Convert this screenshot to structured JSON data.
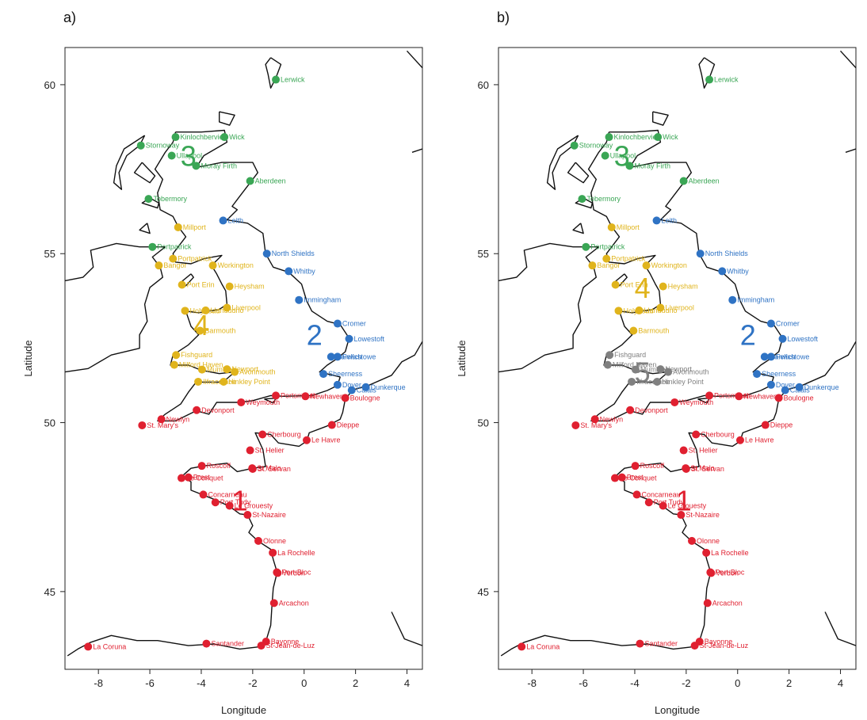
{
  "axes": {
    "xlabel": "Longitude",
    "ylabel": "Latitude",
    "xlim": [
      -9.3,
      4.6
    ],
    "ylim": [
      42.7,
      61.1
    ],
    "xticks": [
      "-8",
      "-6",
      "-4",
      "-2",
      "0",
      "2",
      "4"
    ],
    "xtick_values": [
      -8,
      -6,
      -4,
      -2,
      0,
      2,
      4
    ],
    "yticks": [
      "45",
      "50",
      "55",
      "60"
    ],
    "ytick_values": [
      45,
      50,
      55,
      60
    ]
  },
  "colors": {
    "1": "#e02030",
    "2": "#2f73c4",
    "3": "#3aa655",
    "4": "#e0b41c",
    "5": "#808080"
  },
  "panels": [
    {
      "label": "a)",
      "clusters": [
        {
          "id": "1",
          "text": "1",
          "lon": -2.5,
          "lat": 47.7
        },
        {
          "id": "2",
          "text": "2",
          "lon": 0.4,
          "lat": 52.6
        },
        {
          "id": "3",
          "text": "3",
          "lon": -4.5,
          "lat": 57.9
        },
        {
          "id": "4",
          "text": "4",
          "lon": -4.0,
          "lat": 52.9
        }
      ]
    },
    {
      "label": "b)",
      "clusters": [
        {
          "id": "1",
          "text": "1",
          "lon": -2.1,
          "lat": 47.7
        },
        {
          "id": "2",
          "text": "2",
          "lon": 0.4,
          "lat": 52.6
        },
        {
          "id": "3",
          "text": "3",
          "lon": -4.5,
          "lat": 57.9
        },
        {
          "id": "4",
          "text": "4",
          "lon": -3.7,
          "lat": 54.0
        },
        {
          "id": "5",
          "text": "5",
          "lon": -3.7,
          "lat": 51.5
        }
      ]
    }
  ],
  "ports": [
    {
      "name": "Lerwick",
      "lon": -1.1,
      "lat": 60.15,
      "ca": "3",
      "cb": "3"
    },
    {
      "name": "Kinlochbervie",
      "lon": -5.0,
      "lat": 58.45,
      "ca": "3",
      "cb": "3"
    },
    {
      "name": "Stornoway",
      "lon": -6.35,
      "lat": 58.2,
      "ca": "3",
      "cb": "3"
    },
    {
      "name": "Wick",
      "lon": -3.1,
      "lat": 58.45,
      "ca": "3",
      "cb": "3"
    },
    {
      "name": "Ullapool",
      "lon": -5.15,
      "lat": 57.9,
      "ca": "3",
      "cb": "3"
    },
    {
      "name": "Moray Firth",
      "lon": -4.2,
      "lat": 57.6,
      "ca": "3",
      "cb": "3"
    },
    {
      "name": "Aberdeen",
      "lon": -2.1,
      "lat": 57.15,
      "ca": "3",
      "cb": "3"
    },
    {
      "name": "Tobermory",
      "lon": -6.05,
      "lat": 56.62,
      "ca": "3",
      "cb": "3"
    },
    {
      "name": "Portpatrick",
      "lon": -5.9,
      "lat": 55.2,
      "ca": "3",
      "cb": "3"
    },
    {
      "name": "Leith",
      "lon": -3.15,
      "lat": 55.98,
      "ca": "2",
      "cb": "2"
    },
    {
      "name": "North Shields",
      "lon": -1.45,
      "lat": 55.0,
      "ca": "2",
      "cb": "2"
    },
    {
      "name": "Whitby",
      "lon": -0.6,
      "lat": 54.48,
      "ca": "2",
      "cb": "2"
    },
    {
      "name": "Immingham",
      "lon": -0.2,
      "lat": 53.63,
      "ca": "2",
      "cb": "2"
    },
    {
      "name": "Cromer",
      "lon": 1.3,
      "lat": 52.93,
      "ca": "2",
      "cb": "2"
    },
    {
      "name": "Lowestoft",
      "lon": 1.75,
      "lat": 52.48,
      "ca": "2",
      "cb": "2"
    },
    {
      "name": "Felixstowe",
      "lon": 1.3,
      "lat": 51.95,
      "ca": "2",
      "cb": "2"
    },
    {
      "name": "Harwich",
      "lon": 1.05,
      "lat": 51.95,
      "ca": "2",
      "cb": "2"
    },
    {
      "name": "Sheerness",
      "lon": 0.75,
      "lat": 51.44,
      "ca": "2",
      "cb": "2"
    },
    {
      "name": "Dover",
      "lon": 1.3,
      "lat": 51.12,
      "ca": "2",
      "cb": "2"
    },
    {
      "name": "Calais",
      "lon": 1.85,
      "lat": 50.96,
      "ca": "2",
      "cb": "2"
    },
    {
      "name": "Dunkerque",
      "lon": 2.4,
      "lat": 51.05,
      "ca": "2",
      "cb": "2"
    },
    {
      "name": "Millport",
      "lon": -4.9,
      "lat": 55.78,
      "ca": "4",
      "cb": "4"
    },
    {
      "name": "Portpatrick",
      "lon": -5.1,
      "lat": 54.85,
      "ca": "4",
      "cb": "4"
    },
    {
      "name": "Bangor",
      "lon": -5.65,
      "lat": 54.65,
      "ca": "4",
      "cb": "4"
    },
    {
      "name": "Workington",
      "lon": -3.55,
      "lat": 54.65,
      "ca": "4",
      "cb": "4"
    },
    {
      "name": "Heysham",
      "lon": -2.9,
      "lat": 54.03,
      "ca": "4",
      "cb": "4"
    },
    {
      "name": "Port Erin",
      "lon": -4.75,
      "lat": 54.08,
      "ca": "4",
      "cb": "4"
    },
    {
      "name": "Liverpool",
      "lon": -3.0,
      "lat": 53.4,
      "ca": "4",
      "cb": "4"
    },
    {
      "name": "Holyhead",
      "lon": -4.63,
      "lat": 53.31,
      "ca": "4",
      "cb": "4"
    },
    {
      "name": "Llandudno",
      "lon": -3.83,
      "lat": 53.32,
      "ca": "4",
      "cb": "4"
    },
    {
      "name": "Barmouth",
      "lon": -4.05,
      "lat": 52.72,
      "ca": "4",
      "cb": "4"
    },
    {
      "name": "Fishguard",
      "lon": -4.98,
      "lat": 52.0,
      "ca": "4",
      "cb": "5"
    },
    {
      "name": "Milford Haven",
      "lon": -5.05,
      "lat": 51.71,
      "ca": "4",
      "cb": "5"
    },
    {
      "name": "Mumbles",
      "lon": -3.97,
      "lat": 51.57,
      "ca": "4",
      "cb": "5"
    },
    {
      "name": "Newport",
      "lon": -3.0,
      "lat": 51.58,
      "ca": "4",
      "cb": "5"
    },
    {
      "name": "Avonmouth",
      "lon": -2.7,
      "lat": 51.5,
      "ca": "4",
      "cb": "5"
    },
    {
      "name": "Ilfracombe",
      "lon": -4.12,
      "lat": 51.21,
      "ca": "4",
      "cb": "5"
    },
    {
      "name": "Hinkley Point",
      "lon": -3.13,
      "lat": 51.21,
      "ca": "4",
      "cb": "5"
    },
    {
      "name": "Newlyn",
      "lon": -5.55,
      "lat": 50.1,
      "ca": "1",
      "cb": "1"
    },
    {
      "name": "St. Mary's",
      "lon": -6.3,
      "lat": 49.92,
      "ca": "1",
      "cb": "1"
    },
    {
      "name": "Devonport",
      "lon": -4.18,
      "lat": 50.37,
      "ca": "1",
      "cb": "1"
    },
    {
      "name": "Weymouth",
      "lon": -2.45,
      "lat": 50.6,
      "ca": "1",
      "cb": "1"
    },
    {
      "name": "Portsmouth",
      "lon": -1.1,
      "lat": 50.8,
      "ca": "1",
      "cb": "1"
    },
    {
      "name": "Newhaven",
      "lon": 0.05,
      "lat": 50.78,
      "ca": "1",
      "cb": "1"
    },
    {
      "name": "Boulogne",
      "lon": 1.6,
      "lat": 50.73,
      "ca": "1",
      "cb": "1"
    },
    {
      "name": "Dieppe",
      "lon": 1.08,
      "lat": 49.93,
      "ca": "1",
      "cb": "1"
    },
    {
      "name": "Le Havre",
      "lon": 0.1,
      "lat": 49.48,
      "ca": "1",
      "cb": "1"
    },
    {
      "name": "Cherbourg",
      "lon": -1.62,
      "lat": 49.65,
      "ca": "1",
      "cb": "1"
    },
    {
      "name": "St. Helier",
      "lon": -2.1,
      "lat": 49.18,
      "ca": "1",
      "cb": "1"
    },
    {
      "name": "St. Servan",
      "lon": -2.0,
      "lat": 48.63,
      "ca": "1",
      "cb": "1"
    },
    {
      "name": "St Malo",
      "lon": -2.02,
      "lat": 48.65,
      "ca": "1",
      "cb": "1"
    },
    {
      "name": "Roscoff",
      "lon": -3.98,
      "lat": 48.72,
      "ca": "1",
      "cb": "1"
    },
    {
      "name": "Le Conquet",
      "lon": -4.77,
      "lat": 48.36,
      "ca": "1",
      "cb": "1"
    },
    {
      "name": "Brest",
      "lon": -4.5,
      "lat": 48.38,
      "ca": "1",
      "cb": "1"
    },
    {
      "name": "Concarneau",
      "lon": -3.92,
      "lat": 47.87,
      "ca": "1",
      "cb": "1"
    },
    {
      "name": "Port Tudy",
      "lon": -3.45,
      "lat": 47.64,
      "ca": "1",
      "cb": "1"
    },
    {
      "name": "Le Crouesty",
      "lon": -2.9,
      "lat": 47.54,
      "ca": "1",
      "cb": "1"
    },
    {
      "name": "St-Nazaire",
      "lon": -2.2,
      "lat": 47.27,
      "ca": "1",
      "cb": "1"
    },
    {
      "name": "Olonne",
      "lon": -1.78,
      "lat": 46.5,
      "ca": "1",
      "cb": "1"
    },
    {
      "name": "La Rochelle",
      "lon": -1.22,
      "lat": 46.15,
      "ca": "1",
      "cb": "1"
    },
    {
      "name": "Port-Bloc",
      "lon": -1.06,
      "lat": 45.57,
      "ca": "1",
      "cb": "1"
    },
    {
      "name": "Verdon",
      "lon": -1.03,
      "lat": 45.55,
      "ca": "1",
      "cb": "1"
    },
    {
      "name": "Arcachon",
      "lon": -1.17,
      "lat": 44.66,
      "ca": "1",
      "cb": "1"
    },
    {
      "name": "Bayonne",
      "lon": -1.48,
      "lat": 43.52,
      "ca": "1",
      "cb": "1"
    },
    {
      "name": "St-Jean-de-Luz",
      "lon": -1.67,
      "lat": 43.4,
      "ca": "1",
      "cb": "1"
    },
    {
      "name": "Santander",
      "lon": -3.8,
      "lat": 43.46,
      "ca": "1",
      "cb": "1"
    },
    {
      "name": "La Coruna",
      "lon": -8.4,
      "lat": 43.37,
      "ca": "1",
      "cb": "1"
    }
  ]
}
